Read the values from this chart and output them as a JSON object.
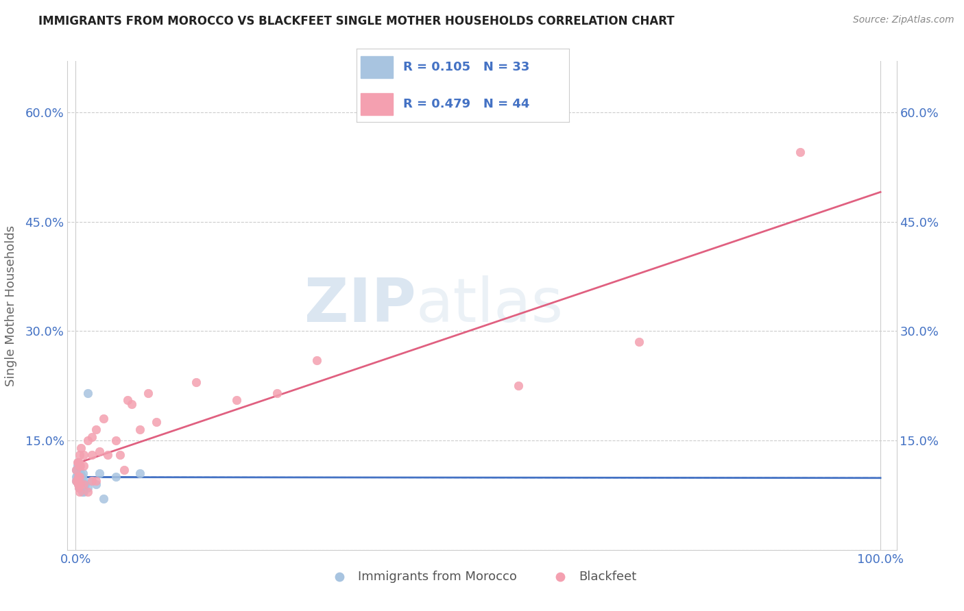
{
  "title": "IMMIGRANTS FROM MOROCCO VS BLACKFEET SINGLE MOTHER HOUSEHOLDS CORRELATION CHART",
  "source": "Source: ZipAtlas.com",
  "ylabel": "Single Mother Households",
  "xlim": [
    0.0,
    1.0
  ],
  "ylim": [
    0.0,
    0.65
  ],
  "yticks": [
    0.0,
    0.15,
    0.3,
    0.45,
    0.6
  ],
  "ytick_labels": [
    "",
    "15.0%",
    "30.0%",
    "45.0%",
    "60.0%"
  ],
  "xtick_labels": [
    "0.0%",
    "100.0%"
  ],
  "morocco_color": "#a8c4e0",
  "blackfeet_color": "#f4a0b0",
  "morocco_line_color": "#4472c4",
  "blackfeet_line_color": "#e06080",
  "legend_text_color": "#4472c4",
  "r_morocco": 0.105,
  "n_morocco": 33,
  "r_blackfeet": 0.479,
  "n_blackfeet": 44,
  "watermark_zip": "ZIP",
  "watermark_atlas": "atlas",
  "morocco_scatter_x": [
    0.001,
    0.001,
    0.001,
    0.002,
    0.002,
    0.002,
    0.003,
    0.003,
    0.003,
    0.003,
    0.004,
    0.004,
    0.004,
    0.005,
    0.005,
    0.006,
    0.006,
    0.007,
    0.008,
    0.008,
    0.009,
    0.009,
    0.01,
    0.01,
    0.012,
    0.015,
    0.015,
    0.02,
    0.025,
    0.03,
    0.035,
    0.05,
    0.08
  ],
  "morocco_scatter_y": [
    0.095,
    0.1,
    0.11,
    0.1,
    0.105,
    0.115,
    0.09,
    0.1,
    0.105,
    0.12,
    0.085,
    0.095,
    0.1,
    0.09,
    0.095,
    0.085,
    0.105,
    0.095,
    0.08,
    0.1,
    0.085,
    0.105,
    0.08,
    0.095,
    0.09,
    0.085,
    0.215,
    0.095,
    0.09,
    0.105,
    0.07,
    0.1,
    0.105
  ],
  "blackfeet_scatter_x": [
    0.001,
    0.001,
    0.002,
    0.002,
    0.003,
    0.003,
    0.003,
    0.004,
    0.004,
    0.005,
    0.005,
    0.005,
    0.005,
    0.006,
    0.006,
    0.007,
    0.01,
    0.01,
    0.01,
    0.015,
    0.015,
    0.02,
    0.02,
    0.02,
    0.025,
    0.025,
    0.03,
    0.035,
    0.04,
    0.05,
    0.055,
    0.06,
    0.065,
    0.07,
    0.08,
    0.09,
    0.1,
    0.15,
    0.2,
    0.25,
    0.3,
    0.55,
    0.7,
    0.9
  ],
  "blackfeet_scatter_y": [
    0.095,
    0.11,
    0.095,
    0.12,
    0.09,
    0.1,
    0.12,
    0.085,
    0.12,
    0.08,
    0.1,
    0.115,
    0.13,
    0.09,
    0.115,
    0.14,
    0.09,
    0.115,
    0.13,
    0.08,
    0.15,
    0.095,
    0.13,
    0.155,
    0.095,
    0.165,
    0.135,
    0.18,
    0.13,
    0.15,
    0.13,
    0.11,
    0.205,
    0.2,
    0.165,
    0.215,
    0.175,
    0.23,
    0.205,
    0.215,
    0.26,
    0.225,
    0.285,
    0.545
  ],
  "grid_color": "#cccccc",
  "background_color": "#ffffff"
}
